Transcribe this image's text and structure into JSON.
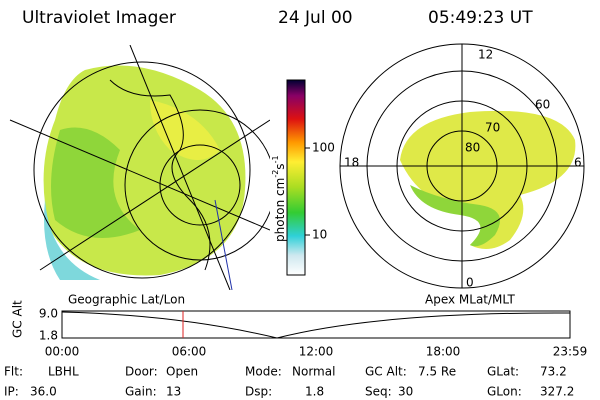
{
  "header": {
    "instrument": "Ultraviolet Imager",
    "date": "24 Jul 00",
    "time": "05:49:23 UT"
  },
  "colorbar": {
    "unit": "photon cm",
    "exp1": "-2",
    "unit2": "s",
    "exp2": "-1",
    "ticks": [
      "100",
      "10"
    ]
  },
  "left_panel": {
    "label": "Geographic Lat/Lon"
  },
  "right_panel": {
    "label": "Apex MLat/MLT",
    "mlt": [
      "12",
      "18",
      "6",
      "0"
    ],
    "mlat": [
      "60",
      "70",
      "80"
    ]
  },
  "orbit": {
    "ylabel": "GC Alt",
    "yticks": [
      "9.0",
      "1.8"
    ],
    "xticks": [
      "00:00",
      "06:00",
      "12:00",
      "18:00",
      "23:59"
    ]
  },
  "footer": [
    [
      {
        "label": "Flt:",
        "value": "LBHL"
      },
      {
        "label": "Door:",
        "value": "Open"
      },
      {
        "label": "Mode:",
        "value": "Normal"
      },
      {
        "label": "GC Alt:",
        "value": "7.5 Re"
      },
      {
        "label": "GLat:",
        "value": "73.2"
      }
    ],
    [
      {
        "label": "IP:",
        "value": "36.0"
      },
      {
        "label": "Gain:",
        "value": "13"
      },
      {
        "label": "Dsp:",
        "value": "1.8"
      },
      {
        "label": "Seq:",
        "value": "30"
      },
      {
        "label": "GLon:",
        "value": "327.2"
      }
    ]
  ]
}
